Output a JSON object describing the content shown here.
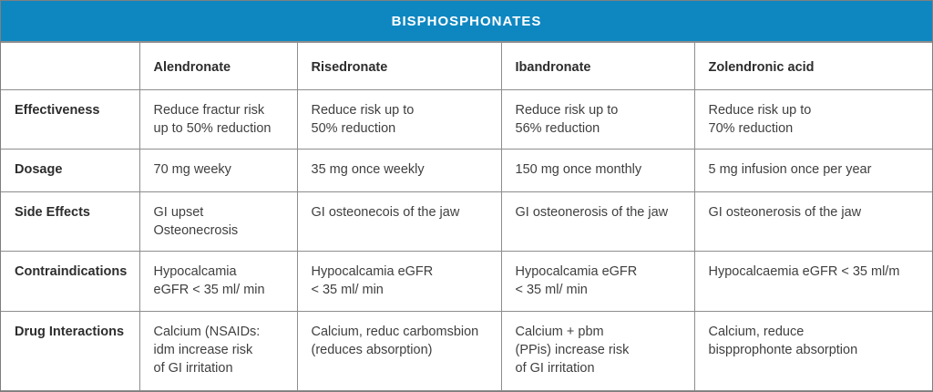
{
  "title": "BISPHOSPHONATES",
  "colors": {
    "header_bg": "#0e87c1",
    "header_text": "#ffffff",
    "border": "#8d8d8d",
    "label_text": "#2d2d2d",
    "body_text": "#3f3f3f"
  },
  "columns": {
    "corner": "",
    "c1": "Alendronate",
    "c2": "Risedronate",
    "c3": "Ibandronate",
    "c4": "Zolendronic acid"
  },
  "rows": [
    {
      "label": "Effectiveness",
      "cells": [
        "Reduce fractur risk\nup to 50% reduction",
        "Reduce risk up to\n50% reduction",
        "Reduce risk up to\n56% reduction",
        "Reduce risk up to\n70% reduction"
      ]
    },
    {
      "label": "Dosage",
      "cells": [
        "70 mg weeky",
        "35 mg once weekly",
        "150 mg once monthly",
        "5 mg infusion once per year"
      ]
    },
    {
      "label": "Side Effects",
      "cells": [
        "GI upset\nOsteonecrosis",
        "GI osteonecois of the jaw",
        "GI osteonerosis of the jaw",
        "GI osteonerosis of the jaw"
      ]
    },
    {
      "label": "Contraindications",
      "cells": [
        "Hypocalcamia\neGFR < 35 ml/ min",
        "Hypocalcamia eGFR\n< 35 ml/ min",
        "Hypocalcamia eGFR\n< 35 ml/ min",
        "Hypocalcaemia eGFR < 35 ml/m"
      ]
    },
    {
      "label": "Drug Interactions",
      "cells": [
        "Calcium (NSAIDs:\nidm increase risk\nof GI irritation",
        "Calcium, reduc carbomsbion\n(reduces absorption)",
        "Calcium + pbm\n(PPis) increase risk\nof GI irritation",
        "Calcium, reduce\nbispprophonte absorption"
      ]
    }
  ]
}
